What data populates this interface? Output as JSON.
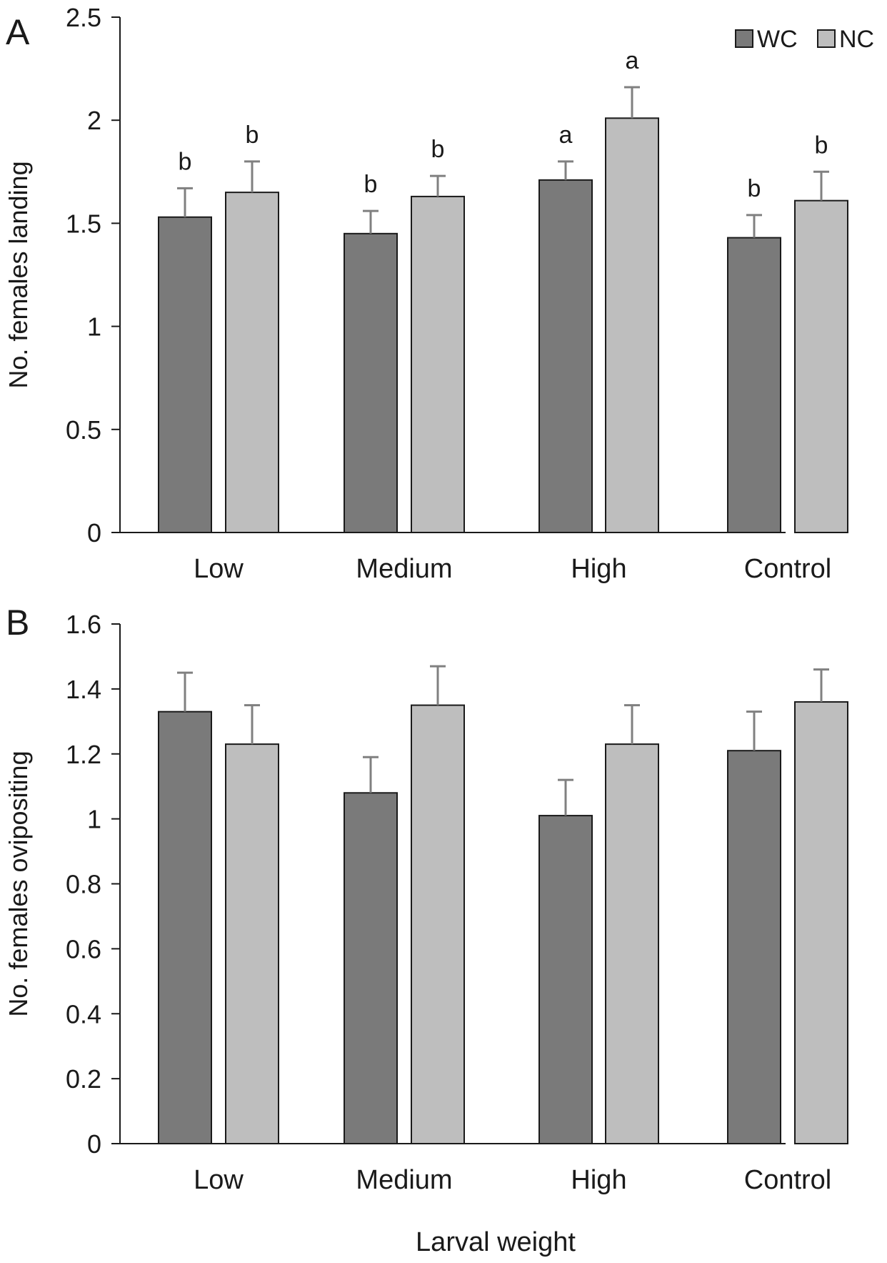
{
  "figure": {
    "xlabel": "Larval weight"
  },
  "colors": {
    "WC": "#7a7a7a",
    "NC": "#bebebe",
    "axis": "#1a1a1a",
    "error_bar": "#808080"
  },
  "legend": {
    "placement": "top-right",
    "entries": [
      "WC",
      "NC"
    ]
  },
  "chart_data": [
    {
      "panel": "A",
      "type": "bar",
      "ylabel": "No. females landing",
      "ylim": [
        0,
        2.5
      ],
      "yticks": [
        "0",
        "0.5",
        "1",
        "1.5",
        "2",
        "2.5"
      ],
      "categories": [
        "Low",
        "Medium",
        "High",
        "Control"
      ],
      "series": [
        {
          "name": "WC",
          "values": [
            1.53,
            1.45,
            1.71,
            1.43
          ],
          "errors": [
            0.14,
            0.11,
            0.09,
            0.11
          ],
          "letters": [
            "b",
            "b",
            "a",
            "b"
          ]
        },
        {
          "name": "NC",
          "values": [
            1.65,
            1.63,
            2.01,
            1.61
          ],
          "errors": [
            0.15,
            0.1,
            0.15,
            0.14
          ],
          "letters": [
            "b",
            "b",
            "a",
            "b"
          ]
        }
      ],
      "grid": false
    },
    {
      "panel": "B",
      "type": "bar",
      "ylabel": "No. females ovipositing",
      "ylim": [
        0,
        1.6
      ],
      "yticks": [
        "0",
        "0.2",
        "0.4",
        "0.6",
        "0.8",
        "1",
        "1.2",
        "1.4",
        "1.6"
      ],
      "categories": [
        "Low",
        "Medium",
        "High",
        "Control"
      ],
      "series": [
        {
          "name": "WC",
          "values": [
            1.33,
            1.08,
            1.01,
            1.21
          ],
          "errors": [
            0.12,
            0.11,
            0.11,
            0.12
          ],
          "letters": [
            "",
            "",
            "",
            ""
          ]
        },
        {
          "name": "NC",
          "values": [
            1.23,
            1.35,
            1.23,
            1.36
          ],
          "errors": [
            0.12,
            0.12,
            0.12,
            0.1
          ],
          "letters": [
            "",
            "",
            "",
            ""
          ]
        }
      ],
      "grid": false
    }
  ]
}
